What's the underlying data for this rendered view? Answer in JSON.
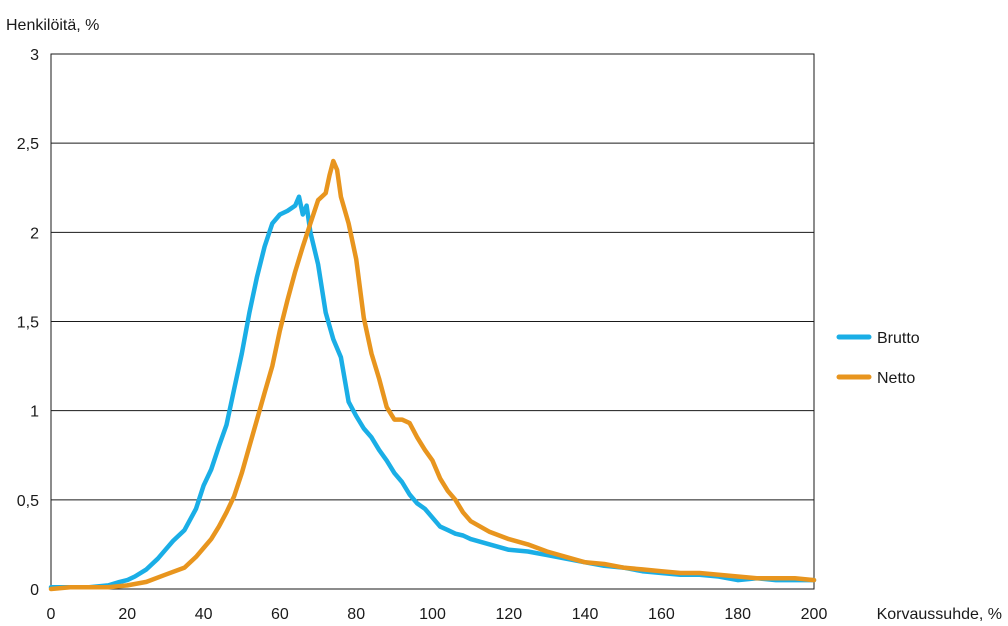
{
  "chart_data": {
    "type": "line",
    "title": "",
    "ylabel": "Henkilöitä, %",
    "xlabel": "Korvaussuhde, %",
    "xlim": [
      0,
      200
    ],
    "ylim": [
      0,
      3
    ],
    "x_ticks": [
      "0",
      "20",
      "40",
      "60",
      "80",
      "100",
      "120",
      "140",
      "160",
      "180",
      "200"
    ],
    "y_ticks": [
      "0",
      "0,5",
      "1",
      "1,5",
      "2",
      "2,5",
      "3"
    ],
    "grid": "horizontal",
    "legend_position": "right",
    "series": [
      {
        "name": "Brutto",
        "color": "#1aaee6",
        "x": [
          0,
          5,
          10,
          15,
          18,
          20,
          22,
          25,
          28,
          30,
          32,
          35,
          38,
          40,
          42,
          44,
          46,
          48,
          50,
          52,
          54,
          56,
          58,
          60,
          62,
          64,
          65,
          66,
          67,
          68,
          70,
          72,
          74,
          76,
          78,
          80,
          82,
          84,
          86,
          88,
          90,
          92,
          94,
          96,
          98,
          100,
          102,
          104,
          106,
          108,
          110,
          115,
          120,
          125,
          130,
          135,
          140,
          145,
          150,
          155,
          160,
          165,
          170,
          175,
          180,
          185,
          190,
          195,
          200
        ],
        "y": [
          0.01,
          0.01,
          0.01,
          0.02,
          0.04,
          0.05,
          0.07,
          0.11,
          0.17,
          0.22,
          0.27,
          0.33,
          0.45,
          0.58,
          0.67,
          0.8,
          0.92,
          1.12,
          1.32,
          1.55,
          1.75,
          1.92,
          2.05,
          2.1,
          2.12,
          2.15,
          2.2,
          2.1,
          2.15,
          2.0,
          1.82,
          1.55,
          1.4,
          1.3,
          1.05,
          0.97,
          0.9,
          0.85,
          0.78,
          0.72,
          0.65,
          0.6,
          0.53,
          0.48,
          0.45,
          0.4,
          0.35,
          0.33,
          0.31,
          0.3,
          0.28,
          0.25,
          0.22,
          0.21,
          0.19,
          0.17,
          0.15,
          0.13,
          0.12,
          0.1,
          0.09,
          0.08,
          0.08,
          0.07,
          0.05,
          0.06,
          0.05,
          0.05,
          0.05
        ]
      },
      {
        "name": "Netto",
        "color": "#e8951e",
        "x": [
          0,
          5,
          10,
          15,
          20,
          25,
          30,
          35,
          38,
          40,
          42,
          44,
          46,
          48,
          50,
          52,
          54,
          56,
          58,
          60,
          62,
          64,
          66,
          68,
          70,
          72,
          73,
          74,
          75,
          76,
          78,
          80,
          82,
          84,
          86,
          88,
          90,
          92,
          94,
          96,
          98,
          100,
          102,
          104,
          106,
          108,
          110,
          115,
          120,
          125,
          130,
          135,
          140,
          145,
          150,
          155,
          160,
          165,
          170,
          175,
          180,
          185,
          190,
          195,
          200
        ],
        "y": [
          0.0,
          0.01,
          0.01,
          0.01,
          0.02,
          0.04,
          0.08,
          0.12,
          0.18,
          0.23,
          0.28,
          0.35,
          0.43,
          0.52,
          0.65,
          0.8,
          0.95,
          1.1,
          1.25,
          1.45,
          1.62,
          1.78,
          1.92,
          2.05,
          2.18,
          2.22,
          2.32,
          2.4,
          2.35,
          2.2,
          2.05,
          1.85,
          1.52,
          1.32,
          1.18,
          1.02,
          0.95,
          0.95,
          0.93,
          0.85,
          0.78,
          0.72,
          0.62,
          0.55,
          0.5,
          0.43,
          0.38,
          0.32,
          0.28,
          0.25,
          0.21,
          0.18,
          0.15,
          0.14,
          0.12,
          0.11,
          0.1,
          0.09,
          0.09,
          0.08,
          0.07,
          0.06,
          0.06,
          0.06,
          0.05
        ]
      }
    ]
  }
}
